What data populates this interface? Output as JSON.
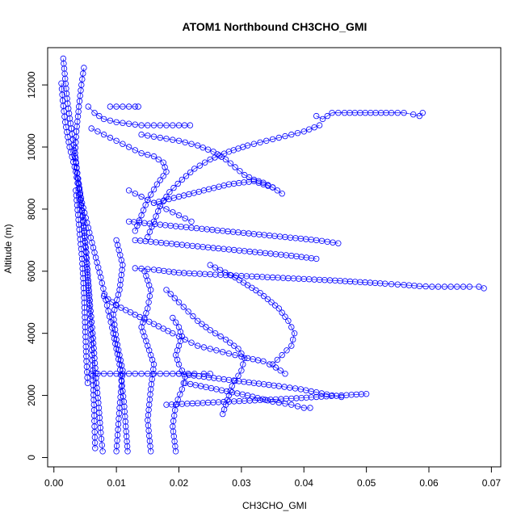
{
  "chart_data": {
    "type": "scatter",
    "title": "ATOM1 Northbound CH3CHO_GMI",
    "xlabel": "CH3CHO_GMI",
    "ylabel": "Altitude (m)",
    "xlim": [
      -0.001,
      0.0715
    ],
    "ylim": [
      -300,
      13200
    ],
    "xticks": [
      0.0,
      0.01,
      0.02,
      0.03,
      0.04,
      0.05,
      0.06,
      0.07
    ],
    "xtick_labels": [
      "0.00",
      "0.01",
      "0.02",
      "0.03",
      "0.04",
      "0.05",
      "0.06",
      "0.07"
    ],
    "yticks": [
      0,
      2000,
      4000,
      6000,
      8000,
      10000,
      12000
    ],
    "ytick_labels": [
      "0",
      "2000",
      "4000",
      "6000",
      "8000",
      "10000",
      "12000"
    ],
    "marker": "open-circle",
    "color": "#0000ff",
    "grid": false,
    "series": [
      {
        "x": [
          0.0012,
          0.0014,
          0.0018,
          0.0025,
          0.0035,
          0.0042,
          0.0048,
          0.0052,
          0.0055,
          0.0058,
          0.0062,
          0.0065,
          0.0068,
          0.0072,
          0.0075,
          0.0078
        ],
        "y": [
          12050,
          11500,
          10800,
          10000,
          9200,
          8300,
          7400,
          6600,
          5700,
          4900,
          4000,
          3200,
          2400,
          1600,
          800,
          200
        ]
      },
      {
        "x": [
          0.0015,
          0.0018,
          0.0022,
          0.0028,
          0.0034,
          0.004,
          0.0046,
          0.005,
          0.0054,
          0.0057,
          0.006,
          0.0062,
          0.0064,
          0.0066
        ],
        "y": [
          12850,
          12200,
          11400,
          10600,
          9700,
          8800,
          7800,
          6800,
          5800,
          4800,
          3800,
          2800,
          1700,
          300
        ]
      },
      {
        "x": [
          0.0048,
          0.0044,
          0.004,
          0.0036,
          0.0034,
          0.0038,
          0.0045,
          0.0055,
          0.0065,
          0.0075,
          0.0085,
          0.0095,
          0.0105,
          0.0112,
          0.0118
        ],
        "y": [
          12550,
          12000,
          11300,
          10500,
          9800,
          9000,
          8200,
          7400,
          6600,
          5800,
          4900,
          4000,
          3000,
          1800,
          200
        ]
      },
      {
        "x": [
          0.0055,
          0.0065,
          0.008,
          0.01,
          0.012,
          0.014,
          0.016,
          0.018,
          0.02,
          0.0218
        ],
        "y": [
          11300,
          11100,
          10900,
          10800,
          10750,
          10700,
          10700,
          10700,
          10700,
          10700
        ]
      },
      {
        "x": [
          0.009,
          0.01,
          0.011,
          0.012,
          0.013,
          0.0135
        ],
        "y": [
          11300,
          11300,
          11300,
          11300,
          11300,
          11300
        ]
      },
      {
        "x": [
          0.006,
          0.008,
          0.01,
          0.012,
          0.014,
          0.016,
          0.0175,
          0.018,
          0.0165,
          0.015,
          0.014,
          0.013
        ],
        "y": [
          10600,
          10400,
          10200,
          10000,
          9800,
          9700,
          9500,
          9200,
          8800,
          8300,
          7800,
          7300
        ]
      },
      {
        "x": [
          0.014,
          0.017,
          0.02,
          0.023,
          0.0255,
          0.0275,
          0.029,
          0.0305,
          0.032,
          0.0335,
          0.035,
          0.0365
        ],
        "y": [
          10400,
          10300,
          10200,
          10050,
          9850,
          9600,
          9350,
          9100,
          8950,
          8850,
          8700,
          8500
        ]
      },
      {
        "x": [
          0.042,
          0.043,
          0.0445,
          0.0465,
          0.049,
          0.0515,
          0.054,
          0.056,
          0.0575,
          0.0585,
          0.059
        ],
        "y": [
          11000,
          10900,
          11100,
          11100,
          11100,
          11100,
          11100,
          11100,
          11050,
          11000,
          11100
        ]
      },
      {
        "x": [
          0.0425,
          0.04,
          0.037,
          0.034,
          0.031,
          0.028,
          0.025,
          0.0225,
          0.0205,
          0.0185,
          0.017,
          0.016,
          0.015
        ],
        "y": [
          10700,
          10500,
          10350,
          10200,
          10050,
          9850,
          9600,
          9300,
          8950,
          8550,
          8100,
          7600,
          7100
        ]
      },
      {
        "x": [
          0.013,
          0.016,
          0.02,
          0.025,
          0.03,
          0.035,
          0.04,
          0.045,
          0.049,
          0.053,
          0.056,
          0.0585,
          0.0605,
          0.0625,
          0.0645,
          0.0665,
          0.068,
          0.0688
        ],
        "y": [
          6100,
          6050,
          5950,
          5900,
          5850,
          5800,
          5750,
          5700,
          5650,
          5600,
          5560,
          5520,
          5500,
          5500,
          5500,
          5500,
          5500,
          5450
        ]
      },
      {
        "x": [
          0.012,
          0.017,
          0.022,
          0.027,
          0.032,
          0.037,
          0.042,
          0.0455
        ],
        "y": [
          7600,
          7500,
          7400,
          7300,
          7200,
          7100,
          7000,
          6900
        ]
      },
      {
        "x": [
          0.013,
          0.018,
          0.023,
          0.028,
          0.033,
          0.038,
          0.042
        ],
        "y": [
          7000,
          6900,
          6800,
          6700,
          6600,
          6500,
          6400
        ]
      },
      {
        "x": [
          0.008,
          0.01,
          0.013,
          0.016,
          0.019,
          0.021,
          0.023,
          0.025,
          0.027,
          0.029,
          0.031,
          0.0335,
          0.0355,
          0.037
        ],
        "y": [
          5200,
          4900,
          4600,
          4300,
          4000,
          3800,
          3600,
          3500,
          3400,
          3300,
          3200,
          3100,
          2900,
          2700
        ]
      },
      {
        "x": [
          0.02,
          0.024,
          0.028,
          0.032,
          0.036,
          0.0395,
          0.042,
          0.0445,
          0.046
        ],
        "y": [
          2700,
          2600,
          2500,
          2400,
          2300,
          2200,
          2100,
          2000,
          1950
        ]
      },
      {
        "x": [
          0.021,
          0.026,
          0.031,
          0.035,
          0.038,
          0.04,
          0.041
        ],
        "y": [
          2400,
          2200,
          2000,
          1800,
          1700,
          1600,
          1600
        ]
      },
      {
        "x": [
          0.018,
          0.023,
          0.028,
          0.033,
          0.038,
          0.042,
          0.046,
          0.05
        ],
        "y": [
          1700,
          1750,
          1800,
          1850,
          1900,
          1950,
          2000,
          2050
        ]
      },
      {
        "x": [
          0.025,
          0.029,
          0.033,
          0.036,
          0.0375,
          0.0385,
          0.038,
          0.0365,
          0.035
        ],
        "y": [
          6200,
          5800,
          5300,
          4800,
          4400,
          4000,
          3600,
          3300,
          3000
        ]
      },
      {
        "x": [
          0.006,
          0.008,
          0.01,
          0.012,
          0.014,
          0.016,
          0.018,
          0.02,
          0.0215,
          0.0225,
          0.024,
          0.025
        ],
        "y": [
          2700,
          2700,
          2700,
          2700,
          2700,
          2700,
          2700,
          2700,
          2700,
          2700,
          2700,
          2700
        ]
      },
      {
        "x": [
          0.019,
          0.02,
          0.0205,
          0.02,
          0.0195,
          0.02,
          0.021,
          0.0205,
          0.0195,
          0.019,
          0.0195
        ],
        "y": [
          4500,
          4200,
          3900,
          3600,
          3300,
          3000,
          2600,
          2200,
          1700,
          1000,
          200
        ]
      },
      {
        "x": [
          0.0145,
          0.0155,
          0.015,
          0.014,
          0.015,
          0.016,
          0.0155,
          0.015,
          0.0155
        ],
        "y": [
          6000,
          5400,
          4800,
          4200,
          3600,
          3000,
          2200,
          1200,
          200
        ]
      },
      {
        "x": [
          0.01,
          0.011,
          0.0105,
          0.0095,
          0.01,
          0.011,
          0.0105,
          0.01
        ],
        "y": [
          7000,
          6200,
          5400,
          4600,
          3800,
          2800,
          1600,
          200
        ]
      },
      {
        "x": [
          0.018,
          0.02,
          0.0215,
          0.023,
          0.025,
          0.0275,
          0.0295,
          0.0305,
          0.03,
          0.0285,
          0.027
        ],
        "y": [
          5400,
          5000,
          4700,
          4400,
          4100,
          3800,
          3500,
          3200,
          2800,
          2300,
          1400
        ]
      },
      {
        "x": [
          0.0035,
          0.004,
          0.0045,
          0.0048,
          0.005,
          0.0052,
          0.0054
        ],
        "y": [
          8600,
          7500,
          6400,
          5300,
          4200,
          3100,
          2400
        ]
      },
      {
        "x": [
          0.012,
          0.014,
          0.016,
          0.018,
          0.02,
          0.022
        ],
        "y": [
          8600,
          8400,
          8200,
          8000,
          7800,
          7600
        ]
      },
      {
        "x": [
          0.016,
          0.02,
          0.024,
          0.028,
          0.032,
          0.035
        ],
        "y": [
          8200,
          8400,
          8600,
          8800,
          8900,
          8700
        ]
      }
    ]
  }
}
